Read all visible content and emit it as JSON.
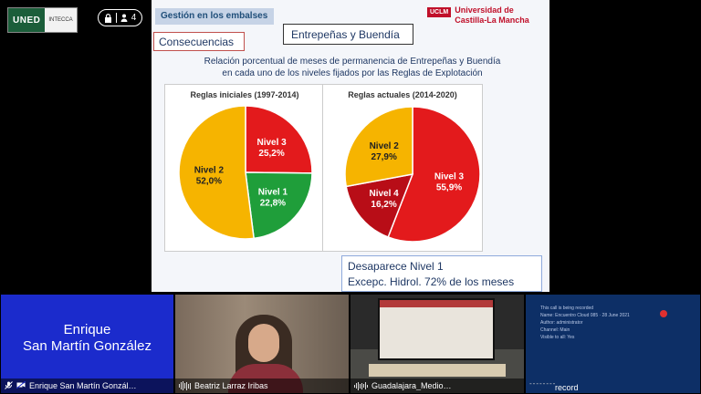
{
  "top": {
    "logo_uned": "UNED",
    "logo_intecca": "INTECCA",
    "participants_count": "4"
  },
  "slide": {
    "section": "Gestión en los embalses",
    "tag": "Consecuencias",
    "title": "Entrepeñas y Buendía",
    "university_mark": "UCLM",
    "university_line1": "Universidad de",
    "university_line2": "Castilla-La Mancha",
    "description_line1": "Relación porcentual de meses de permanencia de Entrepeñas y Buendía",
    "description_line2": "en cada uno de los niveles fijados por las Reglas de Explotación",
    "note_line1": "Desaparece Nivel 1",
    "note_line2": "Excepc. Hidrol. 72% de los meses"
  },
  "chart_data": [
    {
      "type": "pie",
      "title": "Reglas iniciales (1997-2014)",
      "slices": [
        {
          "label": "Nivel 3",
          "value": 25.2,
          "value_label": "25,2%",
          "color": "#e31a1c"
        },
        {
          "label": "Nivel 1",
          "value": 22.8,
          "value_label": "22,8%",
          "color": "#1f9e3a"
        },
        {
          "label": "Nivel 2",
          "value": 52.0,
          "value_label": "52,0%",
          "color": "#f6b400"
        }
      ]
    },
    {
      "type": "pie",
      "title": "Reglas  actuales (2014-2020)",
      "slices": [
        {
          "label": "Nivel 3",
          "value": 55.9,
          "value_label": "55,9%",
          "color": "#e31a1c"
        },
        {
          "label": "Nivel 4",
          "value": 16.2,
          "value_label": "16,2%",
          "color": "#b80d17"
        },
        {
          "label": "Nivel 2",
          "value": 27.9,
          "value_label": "27,9%",
          "color": "#f6b400"
        }
      ]
    }
  ],
  "tiles": {
    "enrique_line1": "Enrique",
    "enrique_line2": "San Martín González",
    "enrique_label": "Enrique San Martín Gonzál…",
    "beatriz_label": "Beatriz Larraz Iribas",
    "guadalajara_label": "Guadalajara_Medio…",
    "record_label": "record",
    "record_dashes": "--------",
    "record_lines": [
      "This call is being recorded",
      "Name: Encuentro Cloud 085 · 28 June 2021",
      "Author: administrator",
      "Channel: Main",
      "Visible to all: Yes"
    ]
  }
}
